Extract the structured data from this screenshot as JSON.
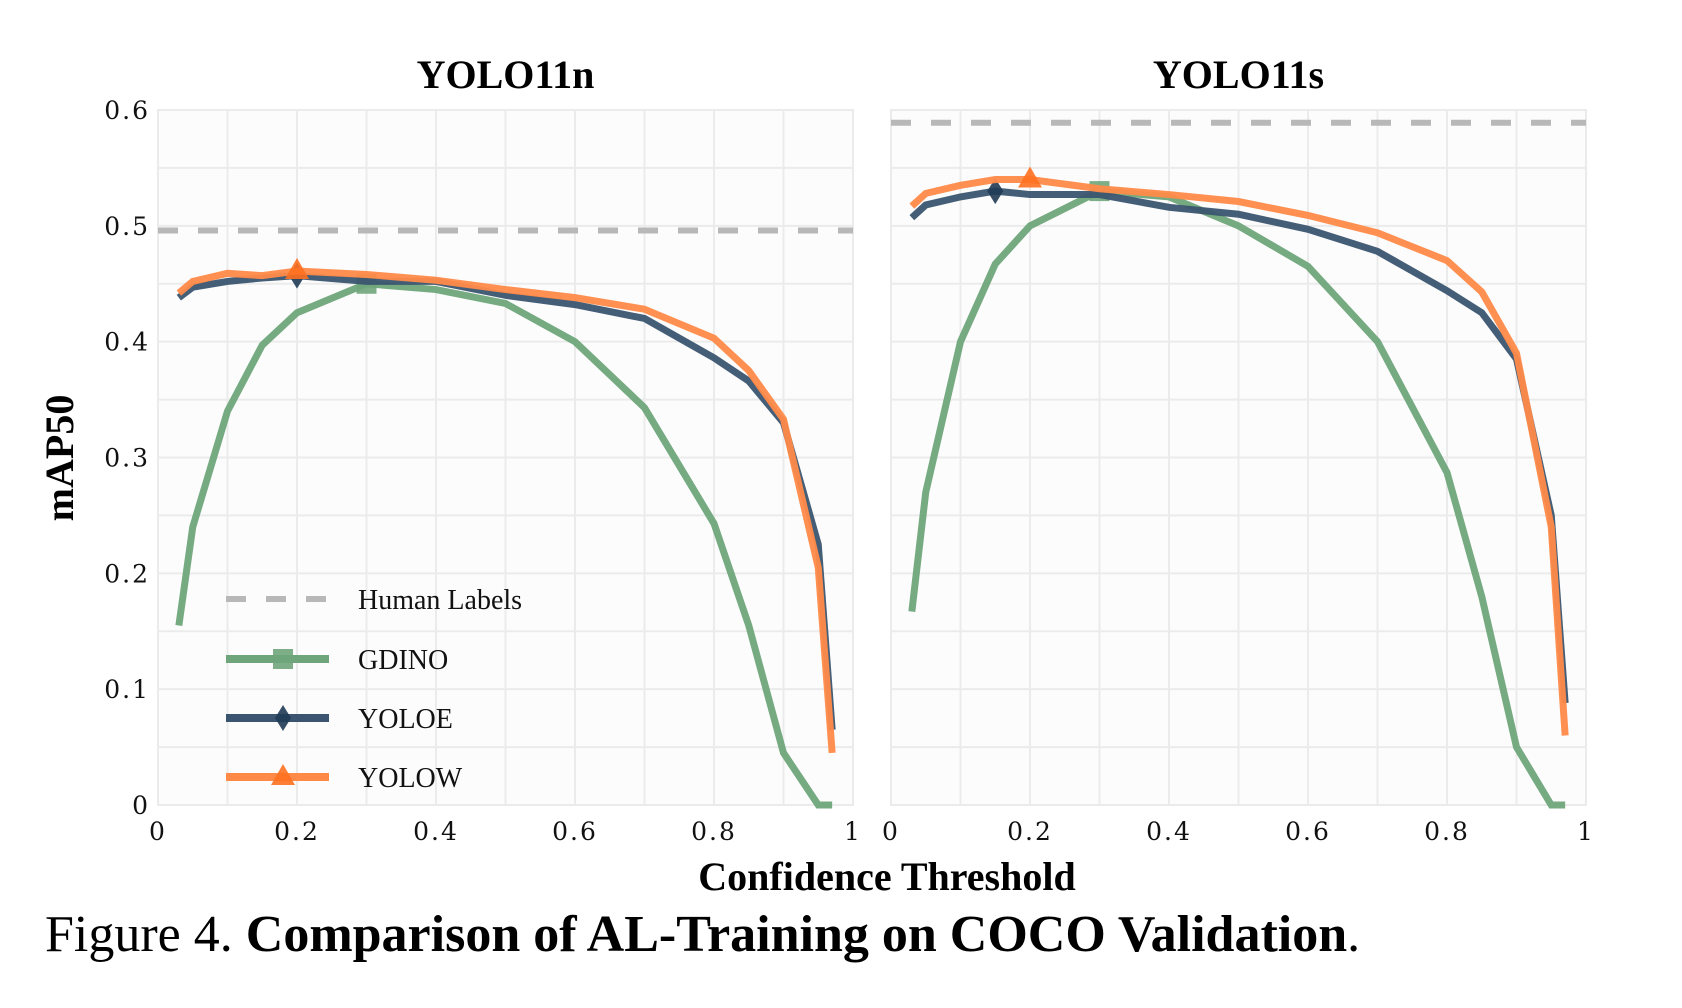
{
  "caption": {
    "prefix": "Figure 4.",
    "title": "Comparison of AL-Training on COCO Validation",
    "suffix": "."
  },
  "shared": {
    "xlabel": "Confidence Threshold",
    "ylabel": "mAP50"
  },
  "legend": [
    {
      "name": "Human Labels",
      "color": "#b8b8b8",
      "style": "dashed",
      "marker": "none"
    },
    {
      "name": "GDINO",
      "color": "#6fa57a",
      "style": "solid",
      "marker": "square"
    },
    {
      "name": "YOLOE",
      "color": "#3b5570",
      "style": "solid",
      "marker": "diamond"
    },
    {
      "name": "YOLOW",
      "color": "#ff8a48",
      "style": "solid",
      "marker": "triangle"
    }
  ],
  "chart_data": [
    {
      "type": "line",
      "title": "YOLO11n",
      "xlim": [
        0,
        1
      ],
      "ylim": [
        0,
        0.6
      ],
      "xticks": [
        "0",
        "0.2",
        "0.4",
        "0.6",
        "0.8",
        "1"
      ],
      "yticks": [
        "0",
        "0.1",
        "0.2",
        "0.3",
        "0.4",
        "0.5",
        "0.6"
      ],
      "grid": true,
      "legend_position": "bottom-left",
      "reference_line": {
        "name": "Human Labels",
        "y": 0.496
      },
      "x": [
        0.03,
        0.05,
        0.1,
        0.15,
        0.2,
        0.3,
        0.4,
        0.5,
        0.6,
        0.7,
        0.8,
        0.85,
        0.9,
        0.95,
        0.97
      ],
      "series": [
        {
          "name": "GDINO",
          "values": [
            0.155,
            0.24,
            0.34,
            0.397,
            0.425,
            0.45,
            0.445,
            0.433,
            0.4,
            0.343,
            0.243,
            0.155,
            0.045,
            0.0,
            0.0
          ],
          "best_x": 0.3
        },
        {
          "name": "YOLOE",
          "values": [
            0.438,
            0.447,
            0.452,
            0.455,
            0.457,
            0.452,
            0.452,
            0.44,
            0.432,
            0.42,
            0.386,
            0.366,
            0.33,
            0.225,
            0.065
          ],
          "best_x": 0.2
        },
        {
          "name": "YOLOW",
          "values": [
            0.442,
            0.452,
            0.459,
            0.457,
            0.461,
            0.458,
            0.453,
            0.445,
            0.438,
            0.428,
            0.403,
            0.375,
            0.333,
            0.205,
            0.045
          ],
          "best_x": 0.2
        }
      ]
    },
    {
      "type": "line",
      "title": "YOLO11s",
      "xlim": [
        0,
        1
      ],
      "ylim": [
        0,
        0.6
      ],
      "xticks": [
        "0",
        "0.2",
        "0.4",
        "0.6",
        "0.8",
        "1"
      ],
      "yticks": [],
      "grid": true,
      "reference_line": {
        "name": "Human Labels",
        "y": 0.589
      },
      "x": [
        0.03,
        0.05,
        0.1,
        0.15,
        0.2,
        0.3,
        0.4,
        0.5,
        0.6,
        0.7,
        0.8,
        0.85,
        0.9,
        0.95,
        0.97
      ],
      "series": [
        {
          "name": "GDINO",
          "values": [
            0.167,
            0.27,
            0.4,
            0.467,
            0.5,
            0.53,
            0.525,
            0.5,
            0.465,
            0.4,
            0.287,
            0.18,
            0.05,
            0.0,
            0.0
          ],
          "best_x": 0.3
        },
        {
          "name": "YOLOE",
          "values": [
            0.507,
            0.518,
            0.525,
            0.53,
            0.527,
            0.527,
            0.516,
            0.51,
            0.497,
            0.478,
            0.444,
            0.425,
            0.385,
            0.25,
            0.088
          ],
          "best_x": 0.15
        },
        {
          "name": "YOLOW",
          "values": [
            0.517,
            0.528,
            0.535,
            0.54,
            0.54,
            0.532,
            0.527,
            0.521,
            0.509,
            0.494,
            0.47,
            0.443,
            0.39,
            0.24,
            0.06
          ],
          "best_x": 0.2
        }
      ]
    }
  ]
}
